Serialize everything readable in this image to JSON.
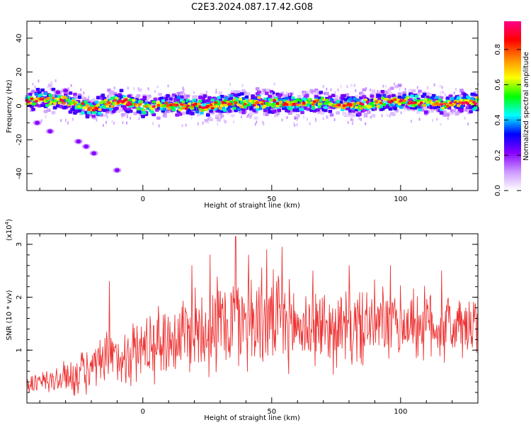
{
  "title": "C2E3.2024.087.17.42.G08",
  "chart_data": [
    {
      "type": "heatmap",
      "title": "C2E3.2024.087.17.42.G08",
      "xlabel": "Height of straight line (km)",
      "ylabel": "Frequency (Hz)",
      "xlim": [
        -45,
        130
      ],
      "ylim": [
        -50,
        50
      ],
      "xticks": [
        0,
        50,
        100
      ],
      "yticks": [
        -40,
        -20,
        0,
        20,
        40
      ],
      "grid": false,
      "ridge": {
        "x": [
          -45,
          -40,
          -35,
          -30,
          -25,
          -20,
          -15,
          -10,
          -5,
          0,
          5,
          10,
          15,
          20,
          25,
          30,
          35,
          40,
          45,
          50,
          55,
          60,
          65,
          70,
          75,
          80,
          85,
          90,
          95,
          100,
          105,
          110,
          115,
          120,
          125,
          130
        ],
        "y": [
          3,
          4,
          4,
          3,
          1,
          -2,
          1,
          3,
          2,
          0,
          0,
          1,
          0,
          0,
          -1,
          1,
          2,
          1,
          2,
          2,
          1,
          1,
          2,
          2,
          1,
          1,
          1,
          2,
          3,
          3,
          2,
          2,
          1,
          1,
          2,
          2
        ]
      },
      "outliers": [
        {
          "x": -41,
          "y": -10
        },
        {
          "x": -36,
          "y": -15
        },
        {
          "x": -25,
          "y": -21
        },
        {
          "x": -22,
          "y": -24
        },
        {
          "x": -19,
          "y": -28
        },
        {
          "x": -10,
          "y": -38
        },
        {
          "x": -33,
          "y": 8
        },
        {
          "x": -30,
          "y": 9
        }
      ],
      "colorbar": {
        "label": "Normalized spectral amplitude",
        "ticks": [
          0.0,
          0.2,
          0.4,
          0.6,
          0.8
        ],
        "range": [
          0,
          0.96
        ],
        "colors": [
          "#ffffff",
          "#cc99ff",
          "#8800ff",
          "#0000ff",
          "#00ffff",
          "#00ff00",
          "#ffff00",
          "#ff8800",
          "#ff0000",
          "#ff0088"
        ]
      }
    },
    {
      "type": "line",
      "xlabel": "Height of straight line (km)",
      "ylabel": "SNR (10 * v/v)",
      "multiplier": "(x10^4)",
      "xlim": [
        -45,
        130
      ],
      "ylim": [
        0,
        3.2
      ],
      "xticks": [
        0,
        50,
        100
      ],
      "yticks": [
        1,
        2,
        3
      ],
      "grid": false,
      "series": [
        {
          "color": "#ee3333",
          "x": [
            -45,
            -40,
            -35,
            -30,
            -25,
            -20,
            -15,
            -10,
            -5,
            0,
            5,
            10,
            15,
            20,
            25,
            30,
            35,
            40,
            45,
            50,
            55,
            60,
            65,
            70,
            75,
            80,
            85,
            90,
            95,
            100,
            105,
            110,
            115,
            120,
            125,
            130
          ],
          "mean": [
            0.35,
            0.38,
            0.42,
            0.48,
            0.55,
            0.62,
            0.75,
            0.85,
            0.95,
            1.05,
            1.15,
            1.2,
            1.3,
            1.4,
            1.45,
            1.5,
            1.55,
            1.6,
            1.6,
            1.55,
            1.5,
            1.45,
            1.45,
            1.45,
            1.4,
            1.4,
            1.45,
            1.5,
            1.5,
            1.5,
            1.5,
            1.5,
            1.45,
            1.45,
            1.4,
            1.4
          ],
          "amplitude": [
            0.25,
            0.3,
            0.35,
            0.4,
            0.5,
            0.55,
            0.65,
            0.7,
            0.75,
            0.8,
            0.85,
            0.9,
            0.95,
            1.05,
            1.1,
            1.15,
            1.2,
            1.2,
            1.15,
            1.1,
            1.05,
            0.95,
            0.95,
            0.9,
            0.9,
            0.9,
            0.9,
            0.9,
            0.9,
            0.9,
            0.85,
            0.85,
            0.85,
            0.8,
            0.8,
            0.8
          ],
          "peaks": [
            {
              "x": -13,
              "y": 2.3
            },
            {
              "x": 19,
              "y": 2.6
            },
            {
              "x": 26,
              "y": 2.8
            },
            {
              "x": 36,
              "y": 3.15
            },
            {
              "x": 41,
              "y": 2.8
            },
            {
              "x": 48,
              "y": 2.9
            },
            {
              "x": 54,
              "y": 2.95
            },
            {
              "x": 66,
              "y": 2.5
            },
            {
              "x": 80,
              "y": 2.6
            },
            {
              "x": 96,
              "y": 2.6
            },
            {
              "x": 116,
              "y": 2.5
            }
          ]
        }
      ]
    }
  ]
}
